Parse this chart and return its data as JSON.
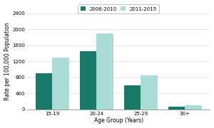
{
  "categories": [
    "15-19",
    "20-24",
    "25-29",
    "30+"
  ],
  "series1_label": "2006-2010",
  "series2_label": "2011-2015",
  "series1_values": [
    900,
    1450,
    600,
    75
  ],
  "series2_values": [
    1300,
    1900,
    850,
    110
  ],
  "series1_color": "#1a7a6a",
  "series2_color": "#aaddd5",
  "xlabel": "Age Group (Years)",
  "ylabel": "Rate per 100,000 Population",
  "ylim": [
    0,
    2400
  ],
  "yticks": [
    0,
    400,
    800,
    1200,
    1600,
    2000,
    2400
  ],
  "background_color": "#ffffff",
  "bar_width": 0.38,
  "axis_fontsize": 5.5,
  "tick_fontsize": 5.0,
  "legend_fontsize": 5.0
}
